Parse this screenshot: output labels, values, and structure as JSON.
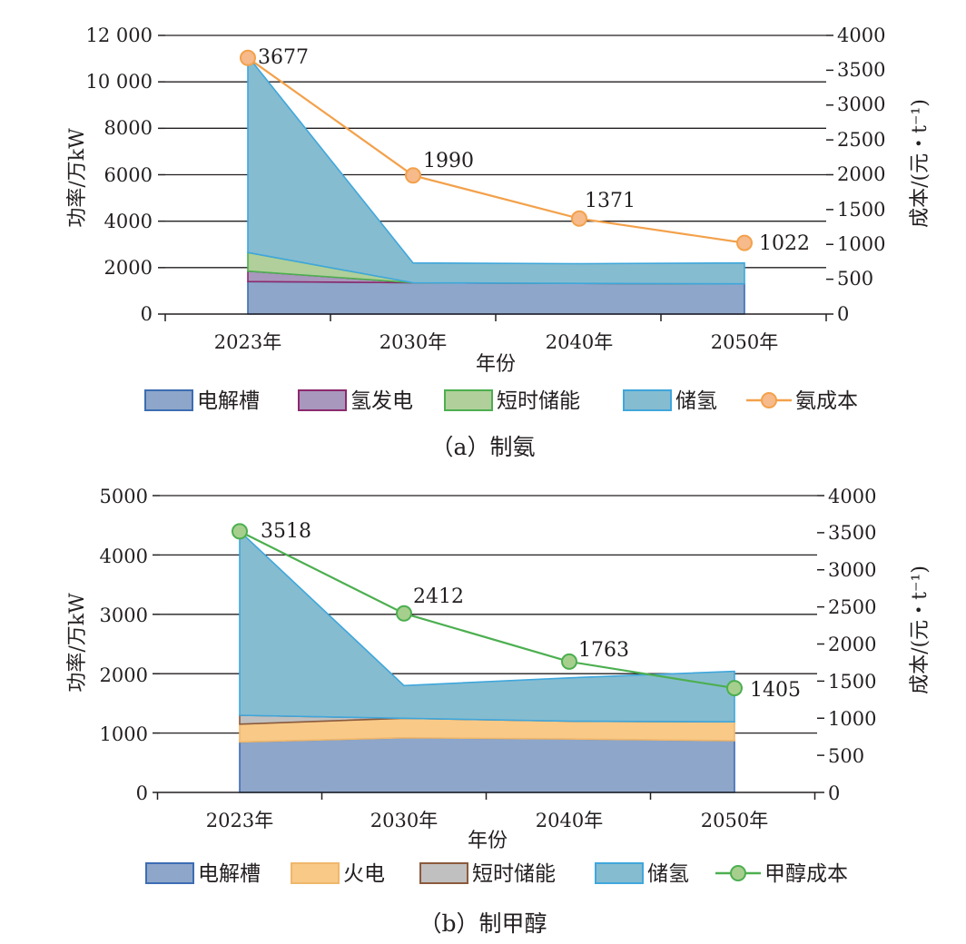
{
  "chart_data": [
    {
      "type": "area",
      "caption": "（a）制氨",
      "categories": [
        "2023年",
        "2030年",
        "2040年",
        "2050年"
      ],
      "xlabel": "年份",
      "ylabel": "功率/万kW",
      "y2label": "成本/(元・t⁻¹)",
      "ylim": [
        0,
        12000
      ],
      "y2lim": [
        0,
        4000
      ],
      "yticks": [
        "0",
        "2000",
        "4000",
        "6000",
        "8000",
        "10 000",
        "12 000"
      ],
      "y2ticks": [
        "0",
        "500",
        "1000",
        "1500",
        "2000",
        "2500",
        "3000",
        "3500",
        "4000"
      ],
      "grid": true,
      "legend_position": "bottom",
      "stacked_series": [
        {
          "name": "电解槽",
          "values": [
            1400,
            1350,
            1320,
            1300
          ],
          "color": "#8ea6c9",
          "stroke": "#3d6db3"
        },
        {
          "name": "氢发电",
          "values": [
            450,
            0,
            0,
            0
          ],
          "color": "#a898bd",
          "stroke": "#8c2a6d"
        },
        {
          "name": "短时储能",
          "values": [
            800,
            0,
            0,
            0
          ],
          "color": "#b0cf9a",
          "stroke": "#4caf50"
        },
        {
          "name": "储氢",
          "values": [
            8450,
            850,
            850,
            900
          ],
          "color": "#86bcd0",
          "stroke": "#3fa7dc"
        }
      ],
      "line_series": {
        "name": "氨成本",
        "values": [
          3677,
          1990,
          1371,
          1022
        ],
        "labels": [
          "3677",
          "1990",
          "1371",
          "1022"
        ],
        "color": "#f3a14b",
        "marker_fill": "#f6ba8b"
      }
    },
    {
      "type": "area",
      "caption": "（b）制甲醇",
      "categories": [
        "2023年",
        "2030年",
        "2040年",
        "2050年"
      ],
      "xlabel": "年份",
      "ylabel": "功率/万kW",
      "y2label": "成本/(元・t⁻¹)",
      "ylim": [
        0,
        5000
      ],
      "y2lim": [
        0,
        4000
      ],
      "yticks": [
        "0",
        "1000",
        "2000",
        "3000",
        "4000",
        "5000"
      ],
      "y2ticks": [
        "0",
        "500",
        "1000",
        "1500",
        "2000",
        "2500",
        "3000",
        "3500",
        "4000"
      ],
      "grid": true,
      "legend_position": "bottom",
      "stacked_series": [
        {
          "name": "电解槽",
          "values": [
            850,
            920,
            900,
            870
          ],
          "color": "#8ea6c9",
          "stroke": "#3d6db3"
        },
        {
          "name": "火电",
          "values": [
            300,
            330,
            300,
            320
          ],
          "color": "#f8c987",
          "stroke": "#f0b76b"
        },
        {
          "name": "短时储能",
          "values": [
            150,
            0,
            0,
            0
          ],
          "color": "#c0c0c0",
          "stroke": "#8b5a3c"
        },
        {
          "name": "储氢",
          "values": [
            3100,
            550,
            730,
            850
          ],
          "color": "#86bcd0",
          "stroke": "#3fa7dc"
        }
      ],
      "line_series": {
        "name": "甲醇成本",
        "values": [
          3518,
          2412,
          1763,
          1405
        ],
        "labels": [
          "3518",
          "2412",
          "1763",
          "1405"
        ],
        "color": "#4caf50",
        "marker_fill": "#a6cf8e"
      }
    }
  ]
}
